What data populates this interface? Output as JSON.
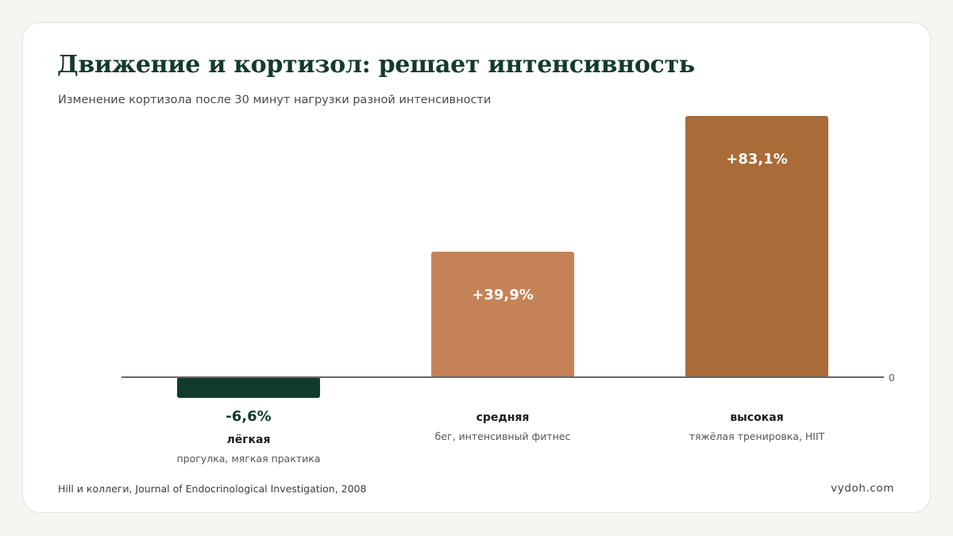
{
  "title": "Движение и кортизол: решает интенсивность",
  "subtitle": "Изменение кортизола после 30 минут нагрузки разной интенсивности",
  "footer": {
    "source": "Hill и коллеги, Journal of Endocrinological Investigation, 2008",
    "site": "vydoh.com"
  },
  "colors": {
    "light": "#133a2e",
    "medium": "#c48256",
    "high": "#a96b38",
    "axis": "#666666"
  },
  "chart_data": {
    "type": "bar",
    "categories": [
      "лёгкая",
      "средняя",
      "высокая"
    ],
    "category_notes": [
      "прогулка, мягкая практика",
      "бег, интенсивный фитнес",
      "тяжёлая тренировка, HIIT"
    ],
    "values": [
      -6.6,
      39.9,
      83.1
    ],
    "value_labels": [
      "-6,6%",
      "+39,9%",
      "+83,1%"
    ],
    "zero_label": "0",
    "unit": "%",
    "ylim": [
      -6.6,
      83.1
    ],
    "grid": false,
    "legend": "none"
  }
}
